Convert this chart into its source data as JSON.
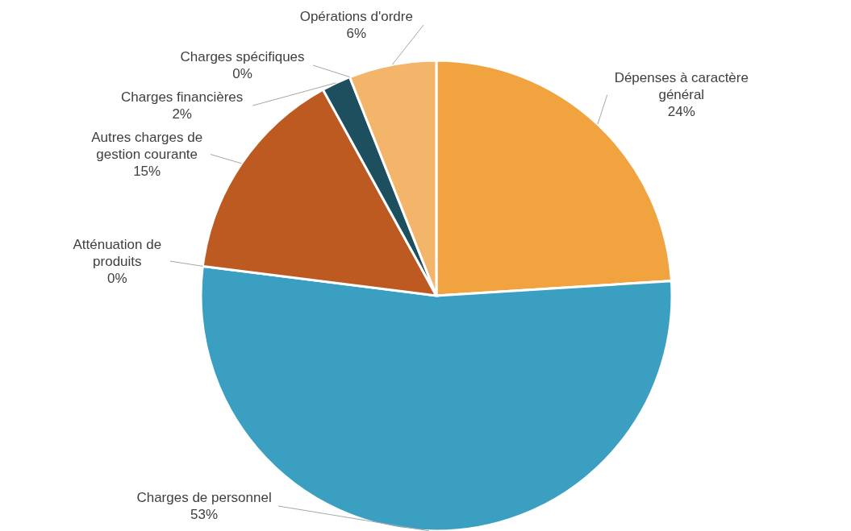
{
  "chart_data": {
    "type": "pie",
    "categories": [
      "Dépenses à caractère général",
      "Charges de personnel",
      "Atténuation de produits",
      "Autres charges de gestion courante",
      "Charges financières",
      "Charges spécifiques",
      "Opérations d'ordre"
    ],
    "values": [
      24,
      53,
      0,
      15,
      2,
      0,
      6
    ],
    "colors": [
      "#f0a33e",
      "#3b9fc2",
      "#7a9aa8",
      "#bd5a22",
      "#1d4f5e",
      "#8a8a8a",
      "#f2b56a"
    ],
    "value_labels": [
      "24%",
      "53%",
      "0%",
      "15%",
      "2%",
      "0%",
      "6%"
    ]
  }
}
